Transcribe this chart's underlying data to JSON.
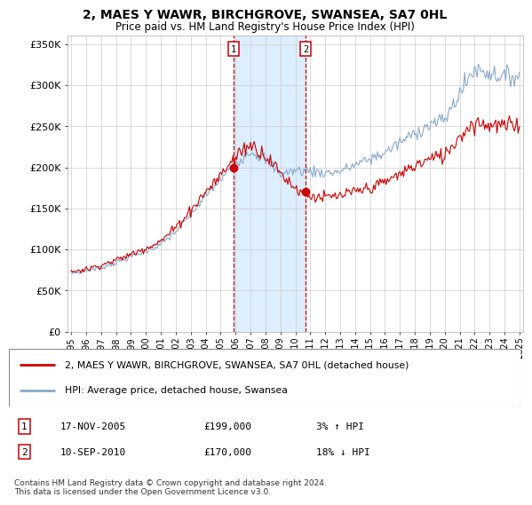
{
  "title": "2, MAES Y WAWR, BIRCHGROVE, SWANSEA, SA7 0HL",
  "subtitle": "Price paid vs. HM Land Registry's House Price Index (HPI)",
  "ylim": [
    0,
    360000
  ],
  "yticks": [
    0,
    50000,
    100000,
    150000,
    200000,
    250000,
    300000,
    350000
  ],
  "ytick_labels": [
    "£0",
    "£50K",
    "£100K",
    "£150K",
    "£200K",
    "£250K",
    "£300K",
    "£350K"
  ],
  "sale1_date_num": 2005.88,
  "sale2_date_num": 2010.71,
  "sale1_price": 199000,
  "sale2_price": 170000,
  "sale1_label": "1",
  "sale2_label": "2",
  "sale1_date_str": "17-NOV-2005",
  "sale2_date_str": "10-SEP-2010",
  "sale1_pct": "3% ↑ HPI",
  "sale2_pct": "18% ↓ HPI",
  "legend_line1": "2, MAES Y WAWR, BIRCHGROVE, SWANSEA, SA7 0HL (detached house)",
  "legend_line2": "HPI: Average price, detached house, Swansea",
  "footer": "Contains HM Land Registry data © Crown copyright and database right 2024.\nThis data is licensed under the Open Government Licence v3.0.",
  "property_color": "#cc0000",
  "hpi_color": "#88aacc",
  "shade_color": "#ddeeff",
  "vline_color": "#cc0000",
  "xlim_left": 1994.75,
  "xlim_right": 2025.25
}
